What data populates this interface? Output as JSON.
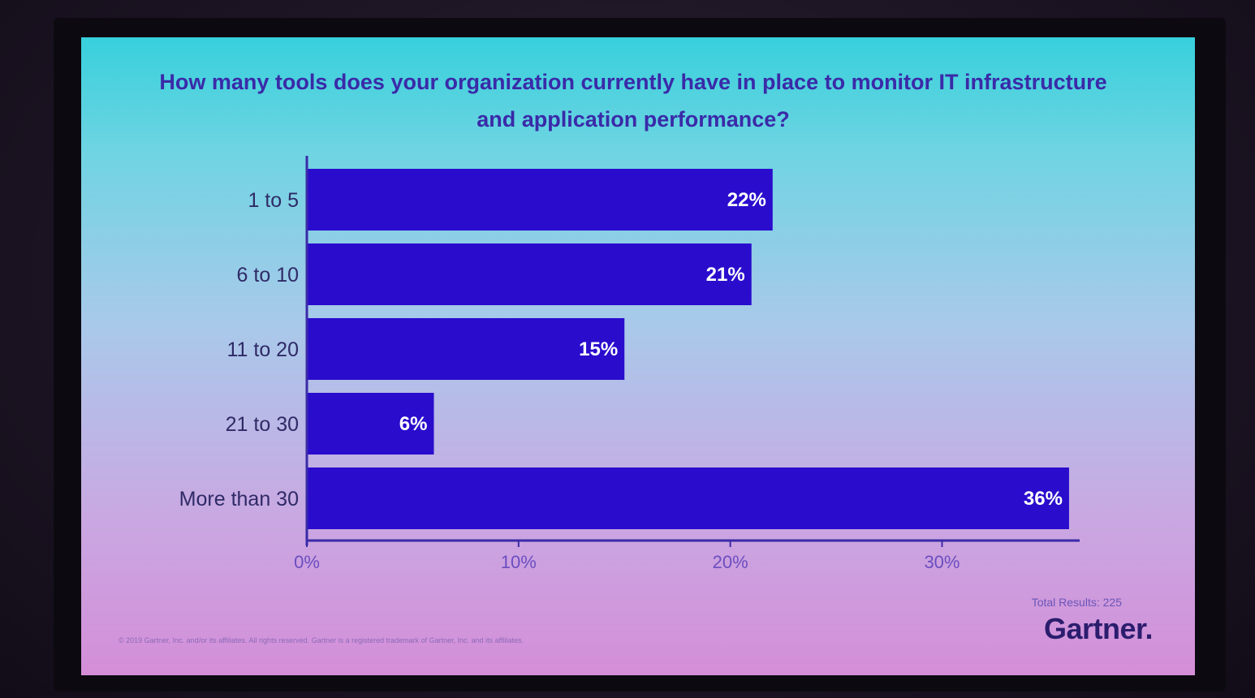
{
  "slide": {
    "title": "How many tools does your organization currently have in place to monitor IT infrastructure and application performance?",
    "total_results": "Total Results: 225",
    "brand": "Gartner.",
    "footer": "© 2019 Gartner, Inc. and/or its affiliates. All rights reserved. Gartner is a registered trademark of Gartner, Inc. and its affiliates."
  },
  "colors": {
    "bar": "#2a0ccd",
    "axis": "#3a2aa8"
  },
  "chart_data": {
    "type": "bar",
    "orientation": "horizontal",
    "title": "How many tools does your organization currently have in place to monitor IT infrastructure and application performance?",
    "categories": [
      "1 to 5",
      "6 to 10",
      "11 to 20",
      "21 to 30",
      "More than 30"
    ],
    "values": [
      22,
      21,
      15,
      6,
      36
    ],
    "data_labels": [
      "22%",
      "21%",
      "15%",
      "6%",
      "36%"
    ],
    "xticks": [
      0,
      10,
      20,
      30
    ],
    "xtick_labels": [
      "0%",
      "10%",
      "20%",
      "30%"
    ],
    "xlim": [
      0,
      36.5
    ],
    "grid": false,
    "legend": "none"
  }
}
